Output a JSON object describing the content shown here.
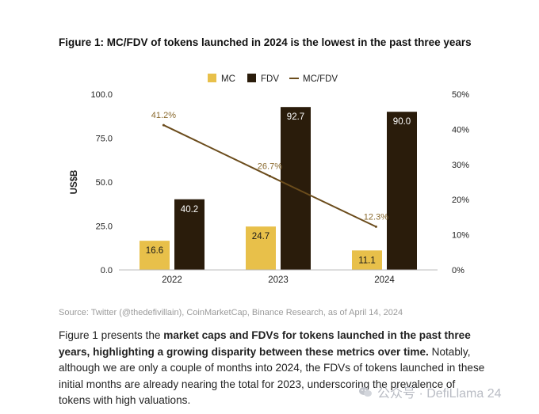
{
  "figure_title": "Figure 1: MC/FDV of tokens launched in 2024 is the lowest in the past three years",
  "source": "Source: Twitter (@thedefivillain), CoinMarketCap, Binance Research, as of April 14, 2024",
  "paragraph": {
    "part1": "Figure 1 presents the ",
    "bold1": "market caps and FDVs for tokens launched in the past three years, highlighting a growing disparity between these metrics over time.",
    "part2": " Notably, although we are only a couple of months into 2024, the FDVs of tokens launched in these initial months are already nearing the total for 2023, underscoring the prevalence of tokens with high valuations."
  },
  "watermark": {
    "icon": "wechat-icon",
    "text": "公众号 · DefiLlama 24"
  },
  "chart_data": {
    "type": "bar",
    "categories": [
      "2022",
      "2023",
      "2024"
    ],
    "series": [
      {
        "name": "MC",
        "values": [
          16.6,
          24.7,
          11.1
        ],
        "color": "#e8c04a",
        "label_color": "#1a1a1a"
      },
      {
        "name": "FDV",
        "values": [
          40.2,
          92.7,
          90.0
        ],
        "value_labels": [
          "40.2",
          "92.7",
          "90.0"
        ],
        "color": "#2a1c0b",
        "label_color": "#ffffff"
      }
    ],
    "line_series": {
      "name": "MC/FDV",
      "values": [
        41.2,
        26.7,
        12.3
      ],
      "labels": [
        "41.2%",
        "26.7%",
        "12.3%"
      ],
      "color": "#6b4c1c",
      "axis": "right"
    },
    "ylabel": "US$B",
    "ylim": [
      0,
      100
    ],
    "yticks": [
      "0.0",
      "25.0",
      "50.0",
      "75.0",
      "100.0"
    ],
    "y2lim": [
      0,
      50
    ],
    "y2ticks": [
      "0%",
      "10%",
      "20%",
      "30%",
      "40%",
      "50%"
    ],
    "legend_position": "top-center",
    "grid": false
  }
}
